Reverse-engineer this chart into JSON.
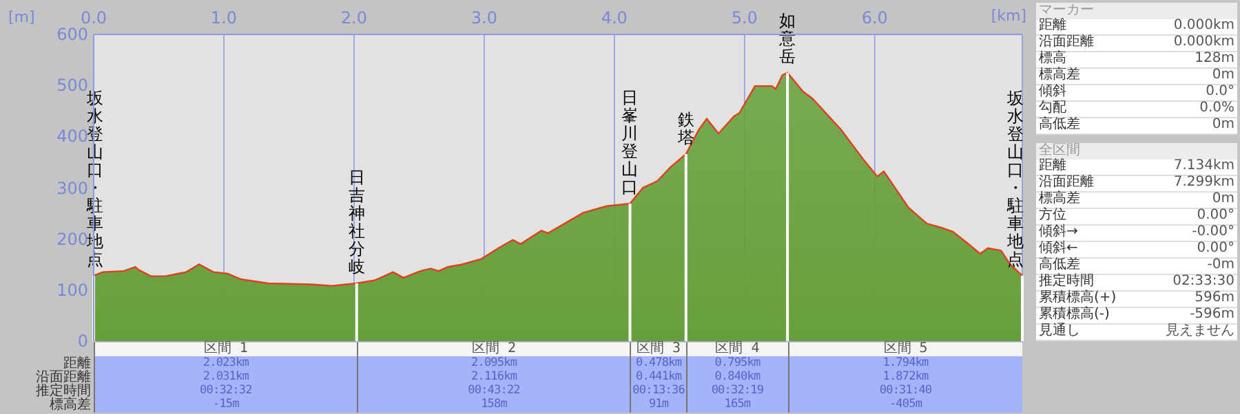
{
  "chart_data": [
    {
      "type": "area",
      "xlabel": "[km]",
      "ylabel": "[m]",
      "x": [
        0,
        0.07,
        0.23,
        0.32,
        0.34,
        0.44,
        0.55,
        0.71,
        0.81,
        0.92,
        1.03,
        1.13,
        1.34,
        1.67,
        1.83,
        2.02,
        2.16,
        2.3,
        2.38,
        2.51,
        2.59,
        2.65,
        2.72,
        2.83,
        2.98,
        3.11,
        3.22,
        3.28,
        3.44,
        3.49,
        3.76,
        3.94,
        4.12,
        4.22,
        4.33,
        4.43,
        4.55,
        4.65,
        4.71,
        4.8,
        4.92,
        4.96,
        5.08,
        5.21,
        5.24,
        5.29,
        5.33,
        5.45,
        5.52,
        5.74,
        5.92,
        6.02,
        6.07,
        6.26,
        6.4,
        6.51,
        6.6,
        6.72,
        6.81,
        6.87,
        6.97,
        7.04,
        7.134
      ],
      "series": [
        {
          "color": "#66a03a",
          "values": [
            128,
            135,
            137,
            145,
            140,
            127,
            127,
            135,
            150,
            135,
            132,
            121,
            113,
            111,
            108,
            113,
            119,
            135,
            124,
            137,
            142,
            137,
            145,
            150,
            161,
            182,
            198,
            190,
            216,
            211,
            251,
            264,
            269,
            300,
            313,
            340,
            366,
            414,
            435,
            406,
            440,
            446,
            499,
            499,
            493,
            520,
            525,
            488,
            475,
            414,
            353,
            322,
            332,
            261,
            230,
            222,
            214,
            190,
            171,
            182,
            177,
            150,
            128
          ]
        }
      ],
      "xlim": [
        0,
        7.134
      ],
      "xticks": [
        {
          "value": 0,
          "label": "0.0"
        },
        {
          "value": 1,
          "label": "1.0"
        },
        {
          "value": 2,
          "label": "2.0"
        },
        {
          "value": 3,
          "label": "3.0"
        },
        {
          "value": 4,
          "label": "4.0"
        },
        {
          "value": 5,
          "label": "5.0"
        },
        {
          "value": 6,
          "label": "6.0"
        }
      ],
      "ylim": [
        0,
        600
      ],
      "yticks": [
        0,
        100,
        200,
        300,
        400,
        500,
        600
      ],
      "grid": true,
      "ref_lines": [
        {
          "axis": "x",
          "value": 0,
          "label": "坂水登山口・駐車地点",
          "color": "#ffffff"
        },
        {
          "axis": "x",
          "value": 2.02,
          "label": "日吉神社分岐",
          "color": "#ffffff"
        },
        {
          "axis": "x",
          "value": 4.12,
          "label": "日峯川登山口",
          "color": "#ffffff"
        },
        {
          "axis": "x",
          "value": 4.55,
          "label": "鉄塔",
          "color": "#ffffff"
        },
        {
          "axis": "x",
          "value": 5.33,
          "label": "如意岳",
          "color": "#ffffff"
        },
        {
          "axis": "x",
          "value": 7.134,
          "label": "坂水登山口・駐車地点",
          "color": "#ffffff"
        }
      ],
      "annotations": [
        "距離",
        "沿面距離",
        "推定時間",
        "標高差",
        "区間 1",
        "2.023km",
        "2.031km",
        "00:32:32",
        "-15m",
        "区間 2",
        "2.095km",
        "2.116km",
        "00:43:22",
        "158m",
        "区間 3",
        "0.478km",
        "0.441km",
        "00:13:36",
        "91m",
        "区間 4",
        "0.795km",
        "0.840km",
        "00:32:19",
        "165m",
        "区間 5",
        "1.794km",
        "1.872km",
        "00:31:40",
        "-405m"
      ]
    },
    {
      "type": "other",
      "title": "マーカー",
      "annotations": [
        "距離",
        "0.000km",
        "沿面距離",
        "0.000km",
        "標高",
        "128m",
        "標高差",
        "0m",
        "傾斜",
        "0.0°",
        "勾配",
        "0.0%",
        "高低差",
        "0m"
      ]
    },
    {
      "type": "other",
      "title": "全区間",
      "annotations": [
        "距離",
        "7.134km",
        "沿面距離",
        "7.299km",
        "標高差",
        "0m",
        "方位",
        "0.00°",
        "傾斜→",
        "-0.00°",
        "傾斜←",
        "0.00°",
        "高低差",
        "-0m",
        "推定時間",
        "02:33:30",
        "累積標高(+)",
        "596m",
        "累積標高(-)",
        "-596m",
        "見通し",
        "見えません"
      ]
    }
  ]
}
